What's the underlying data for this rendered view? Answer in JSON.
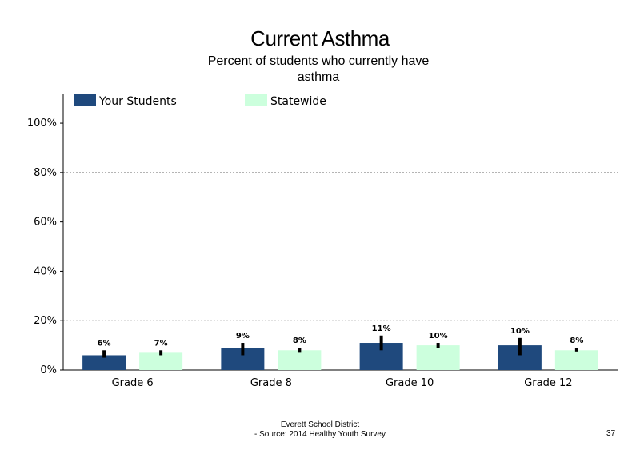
{
  "chart_data": {
    "type": "bar",
    "title": "Current Asthma",
    "subtitle": "Percent of students who currently have asthma",
    "categories": [
      "Grade 6",
      "Grade 8",
      "Grade 10",
      "Grade 12"
    ],
    "series": [
      {
        "name": "Your Students",
        "color": "#1f497d",
        "values": [
          6,
          9,
          11,
          10
        ],
        "labels": [
          "6%",
          "9%",
          "11%",
          "10%"
        ],
        "error": [
          [
            5,
            8
          ],
          [
            6,
            11
          ],
          [
            8,
            14
          ],
          [
            6,
            13
          ]
        ]
      },
      {
        "name": "Statewide",
        "color": "#ccffdd",
        "values": [
          7,
          8,
          10,
          8
        ],
        "labels": [
          "7%",
          "8%",
          "10%",
          "8%"
        ],
        "error": [
          [
            6,
            8
          ],
          [
            7,
            9
          ],
          [
            9,
            11
          ],
          [
            7.5,
            9
          ]
        ]
      }
    ],
    "ylim": [
      0,
      112
    ],
    "yticks": [
      0,
      20,
      40,
      60,
      80,
      100
    ],
    "ytick_labels": [
      "0%",
      "20%",
      "40%",
      "60%",
      "80%",
      "100%"
    ],
    "gridlines": [
      20,
      80
    ],
    "legend_position": "top"
  },
  "footer": {
    "line1": "Everett School District",
    "line2": "- Source: 2014 Healthy  Youth Survey",
    "page_number": "37"
  }
}
